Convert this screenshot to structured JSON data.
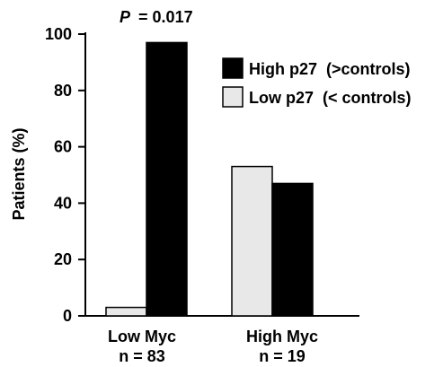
{
  "chart_data": {
    "type": "bar",
    "title": "",
    "annotation": {
      "p_label": "P",
      "p_value": "= 0.017"
    },
    "ylabel": "Patients (%)",
    "xlabel": "",
    "ylim": [
      0,
      100
    ],
    "yticks": [
      "0",
      "20",
      "40",
      "60",
      "80",
      "100"
    ],
    "categories": [
      {
        "line1": "Low Myc",
        "line2": "n = 83"
      },
      {
        "line1": "High Myc",
        "line2": "n = 19"
      }
    ],
    "series": [
      {
        "name": "Low p27  (< controls)",
        "color": "#e8e8e8",
        "values": [
          3,
          53
        ]
      },
      {
        "name": "High p27  (>controls)",
        "color": "#000000",
        "values": [
          97,
          47
        ]
      }
    ],
    "legend": {
      "position": "top-right",
      "items": [
        {
          "name": "High p27  (>controls)",
          "color": "#000000"
        },
        {
          "name": "Low p27  (< controls)",
          "color": "#e8e8e8"
        }
      ]
    },
    "grid": false
  }
}
